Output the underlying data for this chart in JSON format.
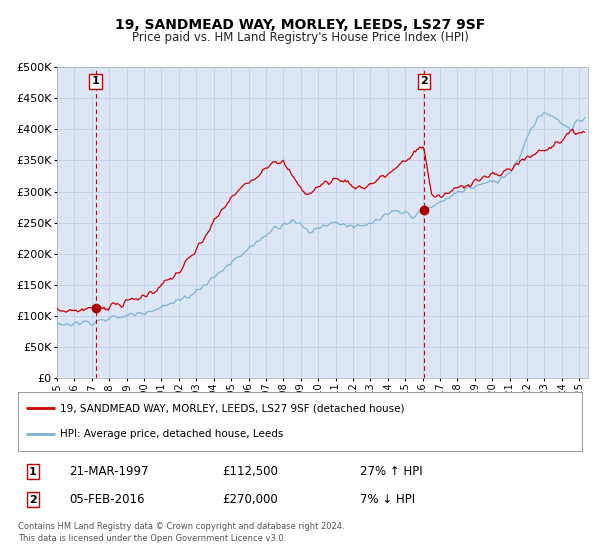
{
  "title": "19, SANDMEAD WAY, MORLEY, LEEDS, LS27 9SF",
  "subtitle": "Price paid vs. HM Land Registry's House Price Index (HPI)",
  "ylim": [
    0,
    500000
  ],
  "yticks": [
    0,
    50000,
    100000,
    150000,
    200000,
    250000,
    300000,
    350000,
    400000,
    450000,
    500000
  ],
  "xlim_start": 1995.0,
  "xlim_end": 2025.5,
  "plot_bg_color": "#dce6f5",
  "grid_color": "#c0cfe8",
  "fig_bg_color": "#ffffff",
  "red_line_color": "#cc0000",
  "blue_line_color": "#7fb3d3",
  "marker_color": "#aa0000",
  "dashed_color": "#cc0000",
  "point1_x": 1997.22,
  "point1_y": 112500,
  "point2_x": 2016.09,
  "point2_y": 270000,
  "point1_label": "1",
  "point2_label": "2",
  "legend_label_red": "19, SANDMEAD WAY, MORLEY, LEEDS, LS27 9SF (detached house)",
  "legend_label_blue": "HPI: Average price, detached house, Leeds",
  "info1_num": "1",
  "info1_date": "21-MAR-1997",
  "info1_price": "£112,500",
  "info1_hpi": "27% ↑ HPI",
  "info2_num": "2",
  "info2_date": "05-FEB-2016",
  "info2_price": "£270,000",
  "info2_hpi": "7% ↓ HPI",
  "footer1": "Contains HM Land Registry data © Crown copyright and database right 2024.",
  "footer2": "This data is licensed under the Open Government Licence v3.0.",
  "xticks": [
    1995,
    1996,
    1997,
    1998,
    1999,
    2000,
    2001,
    2002,
    2003,
    2004,
    2005,
    2006,
    2007,
    2008,
    2009,
    2010,
    2011,
    2012,
    2013,
    2014,
    2015,
    2016,
    2017,
    2018,
    2019,
    2020,
    2021,
    2022,
    2023,
    2024,
    2025
  ]
}
